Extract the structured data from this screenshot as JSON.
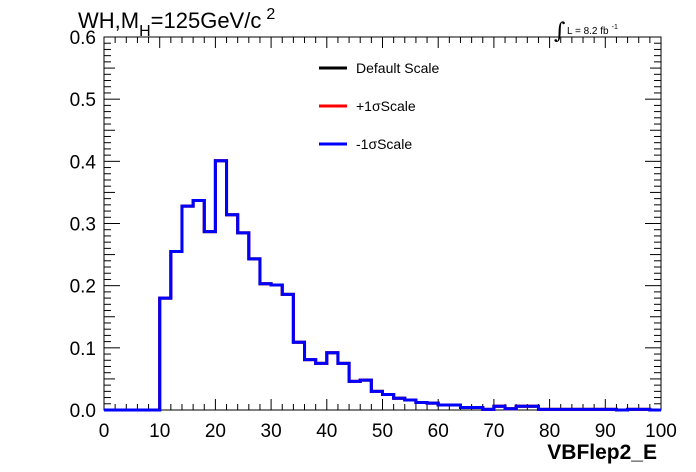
{
  "chart_data": {
    "type": "line",
    "drawstyle": "histogram-step",
    "title": {
      "prefix": "WH,M",
      "subscript": "H",
      "main": "=125GeV/c",
      "superscript": "2"
    },
    "luminosity": {
      "integral_symbol": "∫",
      "text": "L = 8.2 fb",
      "superscript": "-1"
    },
    "xlabel": "VBFlep2_E",
    "ylabel": "",
    "xlim": [
      0,
      100
    ],
    "ylim": [
      0,
      0.6
    ],
    "x_ticks": [
      "0",
      "10",
      "20",
      "30",
      "40",
      "50",
      "60",
      "70",
      "80",
      "90",
      "100"
    ],
    "y_ticks": [
      "0.0",
      "0.1",
      "0.2",
      "0.3",
      "0.4",
      "0.5",
      "0.6"
    ],
    "grid": false,
    "legend_position": "top-center",
    "bin_edges": [
      0,
      2,
      4,
      6,
      8,
      10,
      12,
      14,
      16,
      18,
      20,
      22,
      24,
      26,
      28,
      30,
      32,
      34,
      36,
      38,
      40,
      42,
      44,
      46,
      48,
      50,
      52,
      54,
      56,
      58,
      60,
      62,
      64,
      66,
      68,
      70,
      72,
      74,
      76,
      78,
      80,
      82,
      84,
      86,
      88,
      90,
      92,
      94,
      96,
      98,
      100
    ],
    "series": [
      {
        "name": "Default Scale",
        "color": "#000000",
        "values": [
          0,
          0,
          0,
          0,
          0,
          0.18,
          0.255,
          0.328,
          0.337,
          0.287,
          0.401,
          0.314,
          0.285,
          0.243,
          0.203,
          0.201,
          0.186,
          0.109,
          0.081,
          0.075,
          0.092,
          0.075,
          0.046,
          0.048,
          0.03,
          0.025,
          0.019,
          0.016,
          0.012,
          0.011,
          0.008,
          0.008,
          0.004,
          0.004,
          0.001,
          0.006,
          0.002,
          0.006,
          0.006,
          0.001,
          0.001,
          0.001,
          0.001,
          0.001,
          0.001,
          0.001,
          0,
          0.001,
          0.001,
          0
        ]
      },
      {
        "name": "+1σScale",
        "color": "#ff0000",
        "values": [
          0,
          0,
          0,
          0,
          0,
          0.18,
          0.255,
          0.328,
          0.337,
          0.287,
          0.401,
          0.314,
          0.285,
          0.243,
          0.203,
          0.201,
          0.186,
          0.109,
          0.081,
          0.075,
          0.092,
          0.075,
          0.046,
          0.048,
          0.03,
          0.025,
          0.019,
          0.016,
          0.012,
          0.011,
          0.008,
          0.008,
          0.004,
          0.004,
          0.001,
          0.006,
          0.002,
          0.006,
          0.006,
          0.001,
          0.001,
          0.001,
          0.001,
          0.001,
          0.001,
          0.001,
          0,
          0.001,
          0.001,
          0
        ]
      },
      {
        "name": "-1σScale",
        "color": "#0000ff",
        "values": [
          0,
          0,
          0,
          0,
          0,
          0.18,
          0.255,
          0.328,
          0.337,
          0.287,
          0.401,
          0.314,
          0.285,
          0.243,
          0.203,
          0.201,
          0.186,
          0.109,
          0.081,
          0.075,
          0.092,
          0.075,
          0.046,
          0.048,
          0.03,
          0.025,
          0.019,
          0.016,
          0.012,
          0.011,
          0.008,
          0.008,
          0.004,
          0.004,
          0.001,
          0.006,
          0.002,
          0.006,
          0.006,
          0.001,
          0.001,
          0.001,
          0.001,
          0.001,
          0.001,
          0.001,
          0,
          0.001,
          0.001,
          0
        ]
      }
    ]
  }
}
